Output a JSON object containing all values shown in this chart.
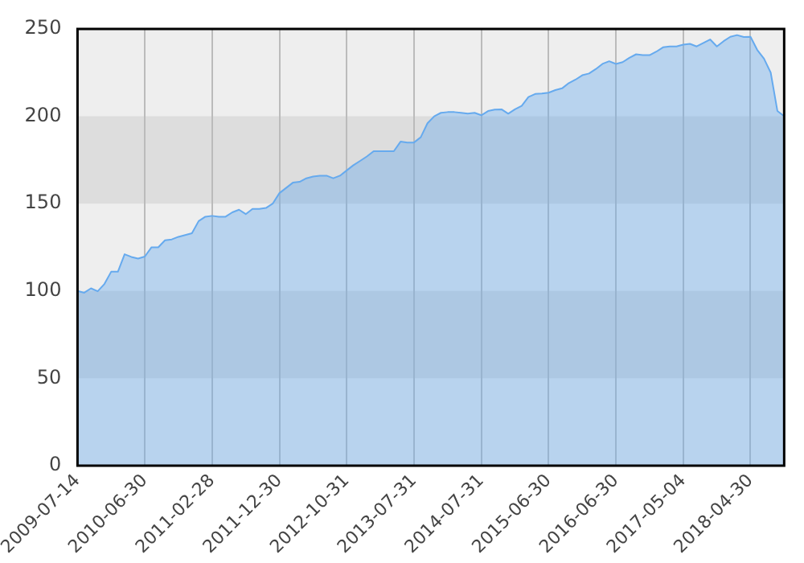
{
  "chart_data": {
    "type": "area",
    "categories": [
      "2009-07-14",
      null,
      null,
      null,
      null,
      null,
      null,
      null,
      null,
      null,
      "2010-06-30",
      null,
      null,
      null,
      null,
      null,
      null,
      null,
      null,
      null,
      "2011-02-28",
      null,
      null,
      null,
      null,
      null,
      null,
      null,
      null,
      null,
      "2011-12-30",
      null,
      null,
      null,
      null,
      null,
      null,
      null,
      null,
      null,
      "2012-10-31",
      null,
      null,
      null,
      null,
      null,
      null,
      null,
      null,
      null,
      "2013-07-31",
      null,
      null,
      null,
      null,
      null,
      null,
      null,
      null,
      null,
      "2014-07-31",
      null,
      null,
      null,
      null,
      null,
      null,
      null,
      null,
      null,
      "2015-06-30",
      null,
      null,
      null,
      null,
      null,
      null,
      null,
      null,
      null,
      "2016-06-30",
      null,
      null,
      null,
      null,
      null,
      null,
      null,
      null,
      null,
      "2017-05-04",
      null,
      null,
      null,
      null,
      null,
      null,
      null,
      null,
      null,
      "2018-04-30",
      null,
      null,
      null,
      null,
      null
    ],
    "series": [
      {
        "color": "#66aaee",
        "values": [
          100,
          99,
          101.5,
          99.8,
          104,
          111,
          111,
          121,
          119.5,
          118.5,
          119.7,
          125,
          125,
          129,
          129.5,
          131,
          132,
          133,
          140,
          142.5,
          143,
          142.5,
          142.5,
          145,
          146.5,
          144,
          147,
          147,
          147.5,
          150,
          156,
          159,
          162,
          162.5,
          164.5,
          165.5,
          166,
          166,
          164.5,
          166,
          169,
          172,
          174.5,
          177,
          180,
          180,
          180,
          180,
          185.5,
          185,
          185,
          188,
          196,
          200,
          202,
          202.4,
          202.4,
          202,
          201.5,
          202,
          200.6,
          203,
          203.8,
          204,
          201.5,
          204,
          206,
          211,
          212.8,
          213,
          213.5,
          215,
          216,
          219,
          221,
          223.5,
          224.5,
          227,
          230,
          231.5,
          230,
          231,
          233.5,
          235.5,
          235,
          235,
          237,
          239.5,
          240,
          240,
          241,
          241.5,
          240,
          242,
          244,
          240,
          243,
          245.5,
          246.5,
          245.4,
          245.5,
          238,
          233,
          225,
          203,
          200
        ]
      }
    ],
    "ylim": [
      0,
      250
    ],
    "yticks": [
      0,
      50,
      100,
      150,
      200,
      250
    ],
    "bands": [
      {
        "axis": "y",
        "from": 50,
        "to": 100,
        "color": "#dddddd"
      },
      {
        "axis": "y",
        "from": 150,
        "to": 200,
        "color": "#dddddd"
      }
    ],
    "grid": "x",
    "legend": false,
    "marker": "none"
  }
}
